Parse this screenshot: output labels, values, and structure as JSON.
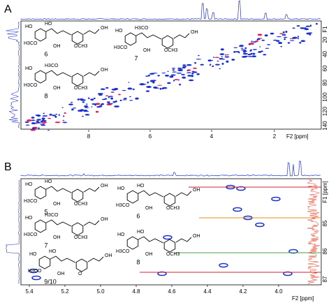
{
  "panel_a": {
    "label": "A",
    "x_axis_title": "F2 [ppm]",
    "y_axis_title": "F1",
    "x_ticks": [
      "8",
      "6",
      "4",
      "2"
    ],
    "y_ticks": [
      "20",
      "40",
      "60",
      "80",
      "100",
      "120",
      "140"
    ],
    "compounds": [
      {
        "number": "6",
        "groups": [
          "HO",
          "H3CO",
          "HO",
          "OH",
          "OCH3",
          "OH"
        ]
      },
      {
        "number": "7",
        "groups": [
          "HO",
          "H3CO",
          "H3CO",
          "OH",
          "OCH3",
          "OH"
        ]
      },
      {
        "number": "8",
        "groups": [
          "HO",
          "H3CO",
          "H3CO",
          "OH",
          "OCH3",
          "OH"
        ]
      }
    ]
  },
  "panel_b": {
    "label": "B",
    "x_axis_title": "F2 [ppm]",
    "y_axis_title": "F1 [ppm]",
    "x_ticks": [
      "5.4",
      "5.2",
      "5.0",
      "4.8",
      "4.6",
      "4.4",
      "4.2",
      "4.0"
    ],
    "y_ticks": [
      "85",
      "86",
      "87"
    ],
    "compounds": [
      {
        "number": "5",
        "groups": [
          "HO",
          "H3CO",
          "HO",
          "OH",
          "OCH3",
          "OH"
        ]
      },
      {
        "number": "6",
        "groups": [
          "HO",
          "H3CO",
          "HO",
          "OH",
          "OCH3",
          "OH"
        ]
      },
      {
        "number": "7",
        "groups": [
          "HO",
          "H3CO",
          "H3CO",
          "OH",
          "OCH3",
          "OH"
        ]
      },
      {
        "number": "8",
        "groups": [
          "HO",
          "H3CO",
          "HO",
          "OH",
          "OCH3",
          "OH"
        ]
      },
      {
        "number": "9/10",
        "groups": [
          "HO",
          "H3CO",
          "HO",
          "OH",
          "O",
          "OH"
        ]
      }
    ]
  }
}
